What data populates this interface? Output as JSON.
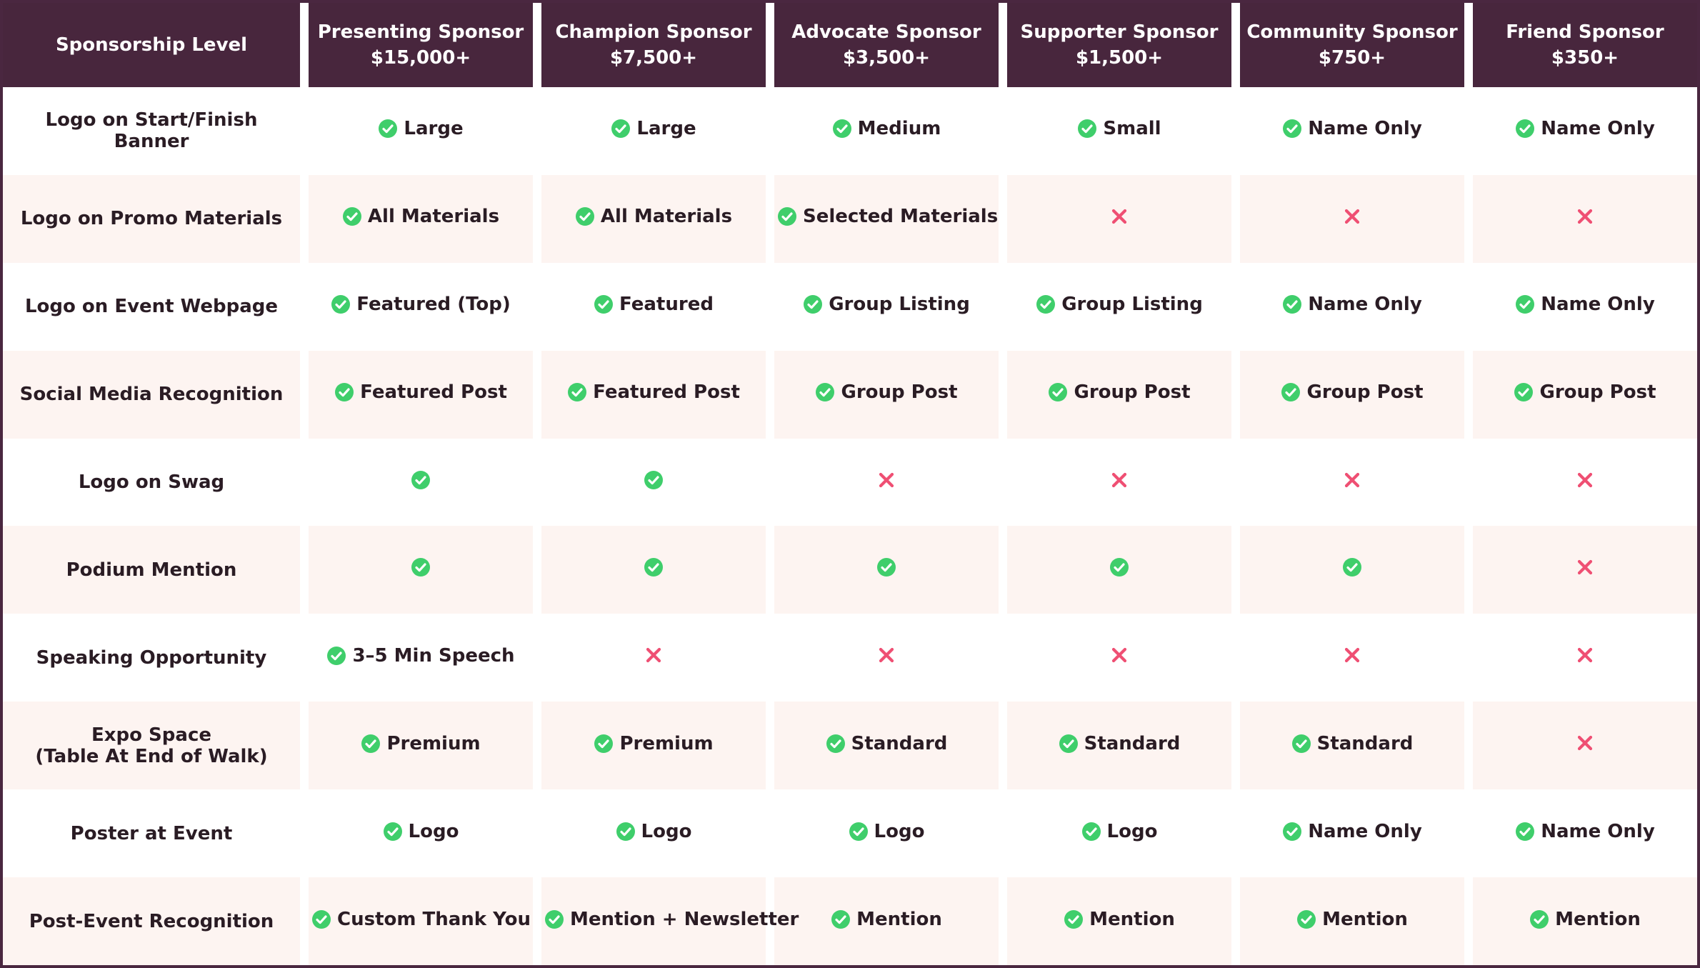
{
  "colors": {
    "header_bg": "#48263d",
    "border": "#4a2740",
    "row_alt_bg": "#fdf4f1",
    "check_green": "#3fce6b",
    "cross_red": "#ef4f73"
  },
  "header": {
    "level_label": "Sponsorship Level",
    "tiers": [
      {
        "name": "Presenting Sponsor",
        "price": "$15,000+"
      },
      {
        "name": "Champion Sponsor",
        "price": "$7,500+"
      },
      {
        "name": "Advocate Sponsor",
        "price": "$3,500+"
      },
      {
        "name": "Supporter Sponsor",
        "price": "$1,500+"
      },
      {
        "name": "Community Sponsor",
        "price": "$750+"
      },
      {
        "name": "Friend Sponsor",
        "price": "$350+"
      }
    ]
  },
  "rows": [
    {
      "label": [
        "Logo on Start/Finish Banner"
      ],
      "cells": [
        {
          "icon": "check-icon",
          "text": "Large"
        },
        {
          "icon": "check-icon",
          "text": "Large"
        },
        {
          "icon": "check-icon",
          "text": "Medium"
        },
        {
          "icon": "check-icon",
          "text": "Small"
        },
        {
          "icon": "check-icon",
          "text": "Name Only"
        },
        {
          "icon": "check-icon",
          "text": "Name Only"
        }
      ]
    },
    {
      "label": [
        "Logo on Promo Materials"
      ],
      "cells": [
        {
          "icon": "check-icon",
          "text": "All Materials"
        },
        {
          "icon": "check-icon",
          "text": "All Materials"
        },
        {
          "icon": "check-icon",
          "text": "Selected Materials"
        },
        {
          "icon": "cross-icon",
          "text": ""
        },
        {
          "icon": "cross-icon",
          "text": ""
        },
        {
          "icon": "cross-icon",
          "text": ""
        }
      ]
    },
    {
      "label": [
        "Logo on Event Webpage"
      ],
      "cells": [
        {
          "icon": "check-icon",
          "text": "Featured (Top)"
        },
        {
          "icon": "check-icon",
          "text": "Featured"
        },
        {
          "icon": "check-icon",
          "text": "Group Listing"
        },
        {
          "icon": "check-icon",
          "text": "Group Listing"
        },
        {
          "icon": "check-icon",
          "text": "Name Only"
        },
        {
          "icon": "check-icon",
          "text": "Name Only"
        }
      ]
    },
    {
      "label": [
        "Social Media Recognition"
      ],
      "cells": [
        {
          "icon": "check-icon",
          "text": "Featured Post"
        },
        {
          "icon": "check-icon",
          "text": "Featured Post"
        },
        {
          "icon": "check-icon",
          "text": "Group Post"
        },
        {
          "icon": "check-icon",
          "text": "Group Post"
        },
        {
          "icon": "check-icon",
          "text": "Group Post"
        },
        {
          "icon": "check-icon",
          "text": "Group Post"
        }
      ]
    },
    {
      "label": [
        "Logo on Swag"
      ],
      "cells": [
        {
          "icon": "check-icon",
          "text": ""
        },
        {
          "icon": "check-icon",
          "text": ""
        },
        {
          "icon": "cross-icon",
          "text": ""
        },
        {
          "icon": "cross-icon",
          "text": ""
        },
        {
          "icon": "cross-icon",
          "text": ""
        },
        {
          "icon": "cross-icon",
          "text": ""
        }
      ]
    },
    {
      "label": [
        "Podium Mention"
      ],
      "cells": [
        {
          "icon": "check-icon",
          "text": ""
        },
        {
          "icon": "check-icon",
          "text": ""
        },
        {
          "icon": "check-icon",
          "text": ""
        },
        {
          "icon": "check-icon",
          "text": ""
        },
        {
          "icon": "check-icon",
          "text": ""
        },
        {
          "icon": "cross-icon",
          "text": ""
        }
      ]
    },
    {
      "label": [
        "Speaking Opportunity"
      ],
      "cells": [
        {
          "icon": "check-icon",
          "text": "3–5 Min Speech"
        },
        {
          "icon": "cross-icon",
          "text": ""
        },
        {
          "icon": "cross-icon",
          "text": ""
        },
        {
          "icon": "cross-icon",
          "text": ""
        },
        {
          "icon": "cross-icon",
          "text": ""
        },
        {
          "icon": "cross-icon",
          "text": ""
        }
      ]
    },
    {
      "label": [
        "Expo Space",
        "(Table At End of Walk)"
      ],
      "cells": [
        {
          "icon": "check-icon",
          "text": "Premium"
        },
        {
          "icon": "check-icon",
          "text": "Premium"
        },
        {
          "icon": "check-icon",
          "text": "Standard"
        },
        {
          "icon": "check-icon",
          "text": "Standard"
        },
        {
          "icon": "check-icon",
          "text": "Standard"
        },
        {
          "icon": "cross-icon",
          "text": ""
        }
      ]
    },
    {
      "label": [
        "Poster at Event"
      ],
      "cells": [
        {
          "icon": "check-icon",
          "text": "Logo"
        },
        {
          "icon": "check-icon",
          "text": "Logo"
        },
        {
          "icon": "check-icon",
          "text": "Logo"
        },
        {
          "icon": "check-icon",
          "text": "Logo"
        },
        {
          "icon": "check-icon",
          "text": "Name Only"
        },
        {
          "icon": "check-icon",
          "text": "Name Only"
        }
      ]
    },
    {
      "label": [
        "Post-Event Recognition"
      ],
      "cells": [
        {
          "icon": "check-icon",
          "text": "Custom Thank You"
        },
        {
          "icon": "check-icon",
          "text": "Mention + Newsletter"
        },
        {
          "icon": "check-icon",
          "text": "Mention"
        },
        {
          "icon": "check-icon",
          "text": "Mention"
        },
        {
          "icon": "check-icon",
          "text": "Mention"
        },
        {
          "icon": "check-icon",
          "text": "Mention"
        }
      ]
    }
  ]
}
